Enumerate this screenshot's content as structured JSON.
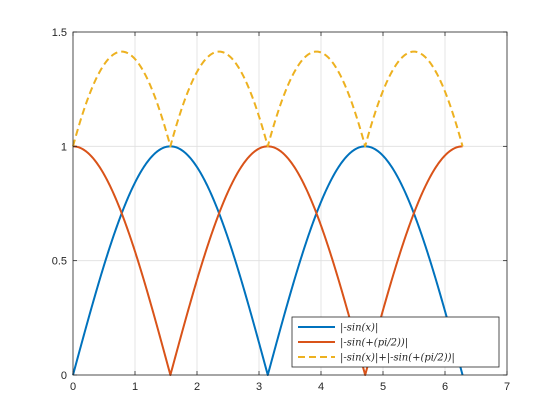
{
  "chart_data": {
    "type": "line",
    "title": "",
    "xlabel": "",
    "ylabel": "",
    "xlim": [
      0,
      7
    ],
    "ylim": [
      0,
      1.5
    ],
    "xticks": [
      0,
      1,
      2,
      3,
      4,
      5,
      6,
      7
    ],
    "yticks": [
      0,
      0.5,
      1,
      1.5
    ],
    "grid": true,
    "legend_location": "bottom-right",
    "x_domain": [
      0,
      6.2832
    ],
    "series": [
      {
        "name": "|-sin(x)|",
        "expression": "abs(sin(x))",
        "color": "#0072BD",
        "line_style": "solid"
      },
      {
        "name": "|-sin(+(pi/2))|",
        "expression": "abs(cos(x))",
        "color": "#D95319",
        "line_style": "solid"
      },
      {
        "name": "|-sin(x)|+|-sin(+(pi/2))|",
        "expression": "abs(sin(x))+abs(cos(x))",
        "color": "#EDB120",
        "line_style": "dashed"
      }
    ]
  }
}
